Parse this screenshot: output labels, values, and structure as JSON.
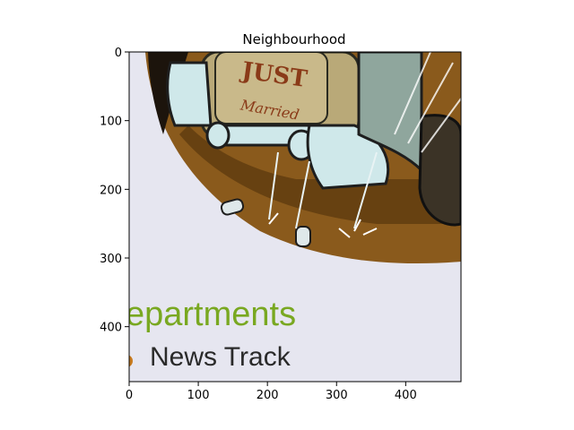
{
  "chart_data": {
    "type": "image",
    "title": "Neighbourhood",
    "xlabel": "",
    "ylabel": "",
    "xlim": [
      0,
      480
    ],
    "ylim": [
      480,
      0
    ],
    "x_ticks": [
      0,
      100,
      200,
      300,
      400
    ],
    "y_ticks": [
      0,
      100,
      200,
      300,
      400
    ],
    "grid": false,
    "image_text": {
      "scrawl_line1": "JUST",
      "scrawl_line2": "Married",
      "heading": "epartments",
      "subheading": "News Track"
    },
    "colors": {
      "paper": "#e6e6f0",
      "ground": "#8a5a1c",
      "ground_dark": "#5e3c10",
      "car_body": "#c9b98a",
      "chrome": "#cfe8ea",
      "heading": "#79a821",
      "subheading": "#2a2a2a"
    }
  }
}
